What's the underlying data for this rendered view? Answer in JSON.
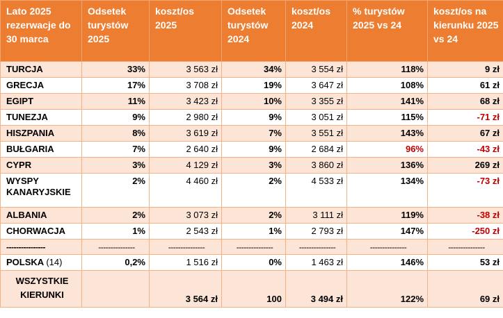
{
  "header": {
    "col0": "Lato 2025 rezerwacje do 30 marca",
    "col1": "Odsetek turystów 2025",
    "col2": "koszt/os 2025",
    "col3": "Odsetek turystów 2024",
    "col4": "koszt/os 2024",
    "col5": "% turystów 2025 vs 24",
    "col6": "koszt/os na kierunku 2025 vs 24"
  },
  "rows": [
    {
      "country": "TURCJA",
      "share25": "33%",
      "cost25": "3 563 zł",
      "share24": "34%",
      "cost24": "3 554 zł",
      "ratio": "118%",
      "diff": "9 zł"
    },
    {
      "country": "GRECJA",
      "share25": "17%",
      "cost25": "3 708 zł",
      "share24": "19%",
      "cost24": "3 647 zł",
      "ratio": "108%",
      "diff": "61 zł"
    },
    {
      "country": "EGIPT",
      "share25": "11%",
      "cost25": "3 423 zł",
      "share24": "10%",
      "cost24": "3 355 zł",
      "ratio": "141%",
      "diff": "68 zł"
    },
    {
      "country": "TUNEZJA",
      "share25": "9%",
      "cost25": "2 980 zł",
      "share24": "9%",
      "cost24": "3 051 zł",
      "ratio": "115%",
      "diff": "-71 zł"
    },
    {
      "country": "HISZPANIA",
      "share25": "8%",
      "cost25": "3 619 zł",
      "share24": "7%",
      "cost24": "3 551 zł",
      "ratio": "143%",
      "diff": "67 zł"
    },
    {
      "country": "BUŁGARIA",
      "share25": "7%",
      "cost25": "2 640 zł",
      "share24": "9%",
      "cost24": "2 684 zł",
      "ratio": "96%",
      "diff": "-43 zł"
    },
    {
      "country": "CYPR",
      "share25": "3%",
      "cost25": "4 129 zł",
      "share24": "3%",
      "cost24": "3 860 zł",
      "ratio": "136%",
      "diff": "269 zł"
    },
    {
      "country": "WYSPY KANARYJSKIE",
      "share25": "2%",
      "cost25": "4 460 zł",
      "share24": "2%",
      "cost24": "4 533 zł",
      "ratio": "134%",
      "diff": "-73 zł"
    },
    {
      "country": "ALBANIA",
      "share25": "2%",
      "cost25": "3 073 zł",
      "share24": "2%",
      "cost24": "3 111 zł",
      "ratio": "119%",
      "diff": "-38 zł"
    },
    {
      "country": "CHORWACJA",
      "share25": "1%",
      "cost25": "2 543 zł",
      "share24": "1%",
      "cost24": "2 793 zł",
      "ratio": "147%",
      "diff": "-250 zł"
    }
  ],
  "separator": "----------------",
  "separator_short": "---------------",
  "polska": {
    "country": "POLSKA",
    "note": "(14)",
    "share25": "0,2%",
    "cost25": "1 516 zł",
    "share24": "0%",
    "cost24": "1 463 zł",
    "ratio": "146%",
    "diff": "53 zł"
  },
  "total": {
    "country": "WSZYSTKIE KIERUNKI",
    "share25": "",
    "cost25": "3 564 zł",
    "share24": "100",
    "cost24": "3 494 zł",
    "ratio": "122%",
    "diff": "69 zł"
  },
  "colors": {
    "header_bg": "#ed7d31",
    "band": "#fce4d6",
    "negative": "#c00000"
  }
}
